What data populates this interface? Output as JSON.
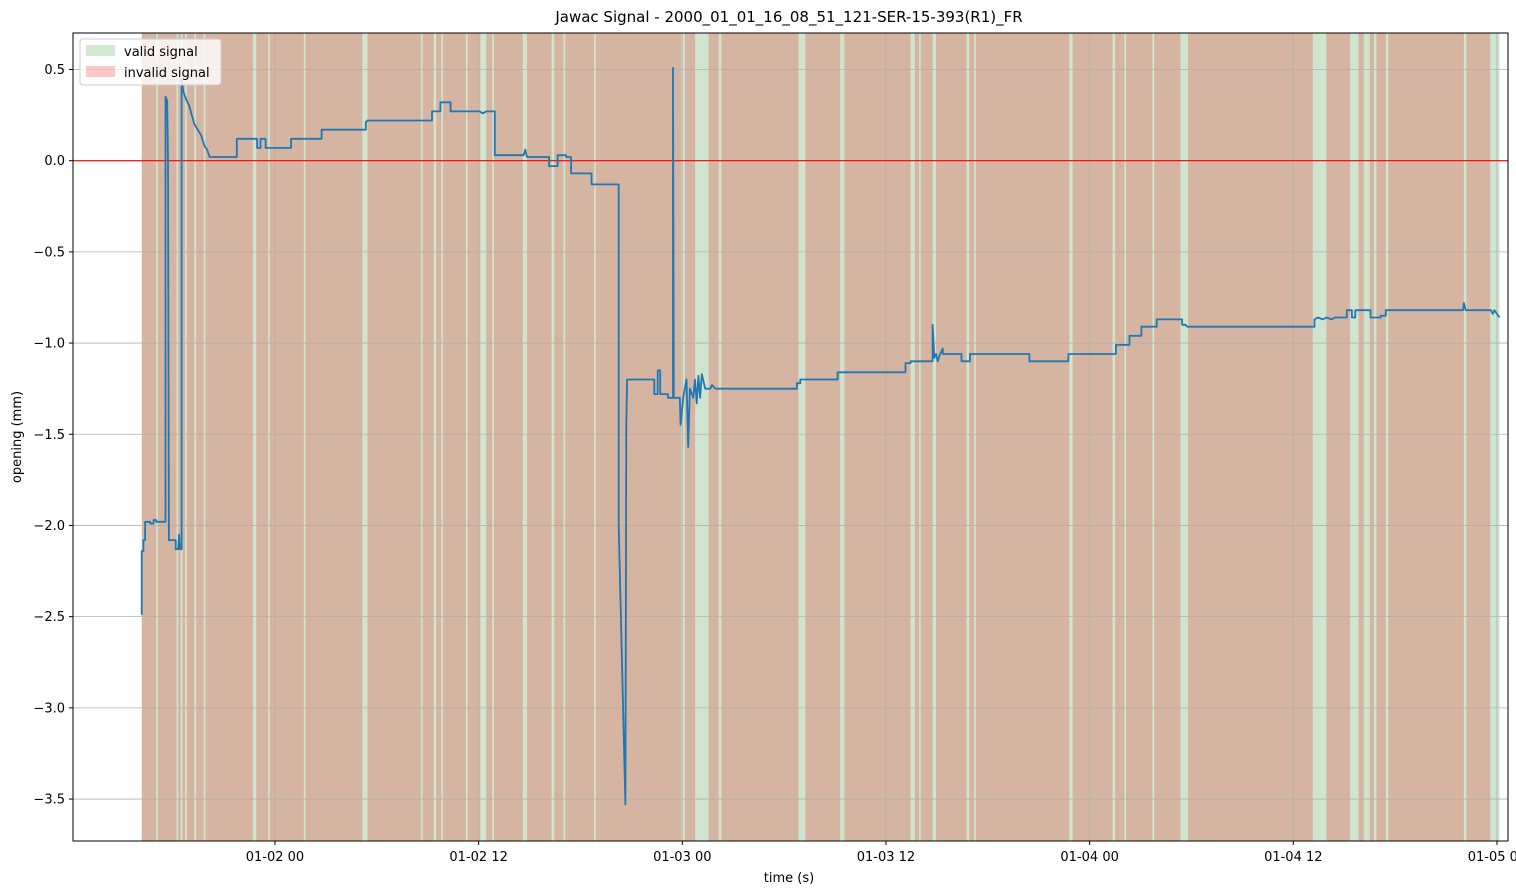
{
  "chart_data": {
    "type": "line",
    "title": "Jawac Signal - 2000_01_01_16_08_51_121-SER-15-393(R1)_FR",
    "xlabel": "time (s)",
    "ylabel": "opening (mm)",
    "x_unit": "hours since 2000-01-01 16:08:51",
    "xlim": [
      -4.05,
      80.5
    ],
    "ylim": [
      -3.73,
      0.7
    ],
    "grid": true,
    "legend_position": "top-left",
    "x_ticks": [
      {
        "pos": 7.85,
        "label": "01-02 00"
      },
      {
        "pos": 19.85,
        "label": "01-02 12"
      },
      {
        "pos": 31.85,
        "label": "01-03 00"
      },
      {
        "pos": 43.85,
        "label": "01-03 12"
      },
      {
        "pos": 55.85,
        "label": "01-04 00"
      },
      {
        "pos": 67.85,
        "label": "01-04 12"
      },
      {
        "pos": 79.85,
        "label": "01-05 00"
      }
    ],
    "y_ticks": [
      0.5,
      0.0,
      -0.5,
      -1.0,
      -1.5,
      -2.0,
      -2.5,
      -3.0,
      -3.5
    ],
    "y_tick_labels": [
      "0.5",
      "0.0",
      "−0.5",
      "−1.0",
      "−1.5",
      "−2.0",
      "−2.5",
      "−3.0",
      "−3.5"
    ],
    "zero_line": {
      "y": 0.0,
      "color": "#ff0000"
    },
    "legend": [
      {
        "label": "valid signal",
        "color": "#2ca02c",
        "alpha": 0.22
      },
      {
        "label": "invalid signal",
        "color": "#ff0000",
        "alpha": 0.22
      }
    ],
    "signal_span": [
      0.0,
      80.0
    ],
    "valid_ranges": [
      [
        0.85,
        0.95
      ],
      [
        2.05,
        2.15
      ],
      [
        2.3,
        2.4
      ],
      [
        2.55,
        2.65
      ],
      [
        3.1,
        3.2
      ],
      [
        3.65,
        3.75
      ],
      [
        6.55,
        6.75
      ],
      [
        7.45,
        7.55
      ],
      [
        9.55,
        9.65
      ],
      [
        13.0,
        13.3
      ],
      [
        16.45,
        16.55
      ],
      [
        17.2,
        17.35
      ],
      [
        17.65,
        17.75
      ],
      [
        19.1,
        19.2
      ],
      [
        19.95,
        20.3
      ],
      [
        20.65,
        20.75
      ],
      [
        22.45,
        22.7
      ],
      [
        24.15,
        24.3
      ],
      [
        24.85,
        24.95
      ],
      [
        26.65,
        26.75
      ],
      [
        31.8,
        32.0
      ],
      [
        32.6,
        33.4
      ],
      [
        34.0,
        34.15
      ],
      [
        38.7,
        39.1
      ],
      [
        41.15,
        41.4
      ],
      [
        45.3,
        45.55
      ],
      [
        45.8,
        45.9
      ],
      [
        46.6,
        46.8
      ],
      [
        48.6,
        48.75
      ],
      [
        49.05,
        49.15
      ],
      [
        54.65,
        54.85
      ],
      [
        57.2,
        57.35
      ],
      [
        57.9,
        58.0
      ],
      [
        59.55,
        59.65
      ],
      [
        61.2,
        61.65
      ],
      [
        69.0,
        69.8
      ],
      [
        71.2,
        71.7
      ],
      [
        72.0,
        72.35
      ],
      [
        72.6,
        72.75
      ],
      [
        73.3,
        73.45
      ],
      [
        77.9,
        78.05
      ],
      [
        79.45,
        80.0
      ]
    ],
    "series": [
      {
        "color": "#1f77b4",
        "points": [
          [
            0.0,
            -2.49
          ],
          [
            0.0,
            -2.14
          ],
          [
            0.1,
            -2.14
          ],
          [
            0.1,
            -2.08
          ],
          [
            0.2,
            -2.08
          ],
          [
            0.2,
            -1.98
          ],
          [
            0.5,
            -1.98
          ],
          [
            0.5,
            -1.99
          ],
          [
            0.7,
            -1.99
          ],
          [
            0.7,
            -1.97
          ],
          [
            0.85,
            -1.97
          ],
          [
            0.85,
            -1.98
          ],
          [
            1.4,
            -1.98
          ],
          [
            1.4,
            0.35
          ],
          [
            1.5,
            0.33
          ],
          [
            1.55,
            0.0
          ],
          [
            1.6,
            -2.08
          ],
          [
            2.0,
            -2.08
          ],
          [
            2.0,
            -2.13
          ],
          [
            2.15,
            -2.13
          ],
          [
            2.2,
            -2.05
          ],
          [
            2.25,
            -2.13
          ],
          [
            2.35,
            -2.13
          ],
          [
            2.35,
            0.45
          ],
          [
            2.45,
            0.38
          ],
          [
            2.6,
            0.34
          ],
          [
            2.8,
            0.3
          ],
          [
            2.95,
            0.25
          ],
          [
            3.1,
            0.2
          ],
          [
            3.3,
            0.17
          ],
          [
            3.5,
            0.14
          ],
          [
            3.7,
            0.08
          ],
          [
            3.85,
            0.06
          ],
          [
            4.0,
            0.02
          ],
          [
            5.6,
            0.02
          ],
          [
            5.6,
            0.12
          ],
          [
            6.8,
            0.12
          ],
          [
            6.8,
            0.07
          ],
          [
            7.0,
            0.07
          ],
          [
            7.0,
            0.12
          ],
          [
            7.3,
            0.12
          ],
          [
            7.3,
            0.07
          ],
          [
            8.8,
            0.07
          ],
          [
            8.8,
            0.12
          ],
          [
            10.6,
            0.12
          ],
          [
            10.6,
            0.17
          ],
          [
            13.2,
            0.17
          ],
          [
            13.2,
            0.21
          ],
          [
            13.3,
            0.22
          ],
          [
            16.8,
            0.22
          ],
          [
            16.9,
            0.22
          ],
          [
            17.0,
            0.22
          ],
          [
            17.1,
            0.22
          ],
          [
            17.1,
            0.27
          ],
          [
            17.6,
            0.27
          ],
          [
            17.6,
            0.32
          ],
          [
            18.2,
            0.32
          ],
          [
            18.2,
            0.27
          ],
          [
            19.9,
            0.27
          ],
          [
            20.1,
            0.26
          ],
          [
            20.3,
            0.27
          ],
          [
            20.8,
            0.27
          ],
          [
            20.8,
            0.03
          ],
          [
            22.5,
            0.03
          ],
          [
            22.6,
            0.06
          ],
          [
            22.7,
            0.02
          ],
          [
            24.0,
            0.02
          ],
          [
            24.0,
            -0.03
          ],
          [
            24.5,
            -0.03
          ],
          [
            24.5,
            0.03
          ],
          [
            25.0,
            0.03
          ],
          [
            25.0,
            0.02
          ],
          [
            25.3,
            0.02
          ],
          [
            25.3,
            -0.07
          ],
          [
            26.5,
            -0.07
          ],
          [
            26.5,
            -0.13
          ],
          [
            28.1,
            -0.13
          ],
          [
            28.1,
            -2.0
          ],
          [
            28.5,
            -3.53
          ],
          [
            28.55,
            -1.45
          ],
          [
            28.6,
            -1.2
          ],
          [
            30.2,
            -1.2
          ],
          [
            30.2,
            -1.28
          ],
          [
            30.4,
            -1.28
          ],
          [
            30.4,
            -1.15
          ],
          [
            30.55,
            -1.15
          ],
          [
            30.55,
            -1.28
          ],
          [
            31.0,
            -1.28
          ],
          [
            31.0,
            -1.3
          ],
          [
            31.3,
            -1.3
          ],
          [
            31.3,
            0.51
          ],
          [
            31.35,
            -1.3
          ],
          [
            31.7,
            -1.3
          ],
          [
            31.75,
            -1.45
          ],
          [
            31.9,
            -1.3
          ],
          [
            32.0,
            -1.25
          ],
          [
            32.1,
            -1.2
          ],
          [
            32.2,
            -1.57
          ],
          [
            32.3,
            -1.25
          ],
          [
            32.5,
            -1.3
          ],
          [
            32.6,
            -1.2
          ],
          [
            32.7,
            -1.33
          ],
          [
            32.8,
            -1.18
          ],
          [
            32.9,
            -1.3
          ],
          [
            33.0,
            -1.17
          ],
          [
            33.2,
            -1.25
          ],
          [
            33.5,
            -1.25
          ],
          [
            33.6,
            -1.23
          ],
          [
            33.8,
            -1.25
          ],
          [
            38.6,
            -1.25
          ],
          [
            38.6,
            -1.22
          ],
          [
            38.8,
            -1.22
          ],
          [
            38.8,
            -1.2
          ],
          [
            41.0,
            -1.2
          ],
          [
            41.0,
            -1.16
          ],
          [
            45.0,
            -1.16
          ],
          [
            45.0,
            -1.11
          ],
          [
            45.3,
            -1.11
          ],
          [
            45.3,
            -1.1
          ],
          [
            46.6,
            -1.1
          ],
          [
            46.6,
            -0.9
          ],
          [
            46.7,
            -1.08
          ],
          [
            46.8,
            -1.06
          ],
          [
            46.9,
            -1.1
          ],
          [
            47.0,
            -1.07
          ],
          [
            47.2,
            -1.03
          ],
          [
            47.2,
            -1.06
          ],
          [
            48.3,
            -1.06
          ],
          [
            48.3,
            -1.1
          ],
          [
            48.8,
            -1.1
          ],
          [
            48.8,
            -1.06
          ],
          [
            52.3,
            -1.06
          ],
          [
            52.3,
            -1.1
          ],
          [
            54.6,
            -1.1
          ],
          [
            54.6,
            -1.06
          ],
          [
            57.4,
            -1.06
          ],
          [
            57.4,
            -1.01
          ],
          [
            58.2,
            -1.01
          ],
          [
            58.2,
            -0.96
          ],
          [
            58.9,
            -0.96
          ],
          [
            58.9,
            -0.91
          ],
          [
            59.8,
            -0.91
          ],
          [
            59.8,
            -0.87
          ],
          [
            61.3,
            -0.87
          ],
          [
            61.3,
            -0.9
          ],
          [
            61.5,
            -0.9
          ],
          [
            61.6,
            -0.91
          ],
          [
            69.1,
            -0.91
          ],
          [
            69.1,
            -0.87
          ],
          [
            69.3,
            -0.86
          ],
          [
            69.6,
            -0.87
          ],
          [
            69.8,
            -0.86
          ],
          [
            70.1,
            -0.87
          ],
          [
            70.3,
            -0.86
          ],
          [
            71.0,
            -0.86
          ],
          [
            71.0,
            -0.82
          ],
          [
            71.3,
            -0.82
          ],
          [
            71.3,
            -0.86
          ],
          [
            71.5,
            -0.86
          ],
          [
            71.5,
            -0.82
          ],
          [
            72.4,
            -0.82
          ],
          [
            72.4,
            -0.86
          ],
          [
            73.0,
            -0.86
          ],
          [
            73.0,
            -0.85
          ],
          [
            73.3,
            -0.85
          ],
          [
            73.3,
            -0.82
          ],
          [
            77.85,
            -0.82
          ],
          [
            77.9,
            -0.78
          ],
          [
            78.0,
            -0.82
          ],
          [
            79.5,
            -0.82
          ],
          [
            79.6,
            -0.84
          ],
          [
            79.7,
            -0.82
          ],
          [
            79.85,
            -0.84
          ],
          [
            80.0,
            -0.86
          ]
        ]
      }
    ]
  }
}
